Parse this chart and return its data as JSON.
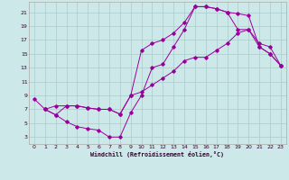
{
  "xlabel": "Windchill (Refroidissement éolien,°C)",
  "bg_color": "#cde8e8",
  "grid_color": "#aacccc",
  "line_color": "#990099",
  "xlim": [
    -0.5,
    23.5
  ],
  "ylim": [
    2,
    22.5
  ],
  "xticks": [
    0,
    1,
    2,
    3,
    4,
    5,
    6,
    7,
    8,
    9,
    10,
    11,
    12,
    13,
    14,
    15,
    16,
    17,
    18,
    19,
    20,
    21,
    22,
    23
  ],
  "yticks": [
    3,
    5,
    7,
    9,
    11,
    13,
    15,
    17,
    19,
    21
  ],
  "line1_x": [
    0,
    1,
    2,
    3,
    4,
    5,
    6,
    7,
    8,
    9,
    10,
    11,
    12,
    13,
    14,
    15,
    16,
    17,
    18,
    19,
    20,
    21,
    22,
    23
  ],
  "line1_y": [
    8.5,
    7.0,
    6.2,
    5.2,
    4.5,
    4.2,
    4.0,
    3.0,
    3.0,
    6.5,
    9.0,
    13.0,
    13.5,
    16.0,
    18.5,
    21.8,
    21.8,
    21.5,
    21.0,
    20.8,
    20.5,
    16.0,
    15.0,
    13.3
  ],
  "line2_x": [
    1,
    2,
    3,
    4,
    5,
    6,
    7,
    8,
    9,
    10,
    11,
    12,
    13,
    14,
    15,
    16,
    17,
    18,
    19,
    20,
    21,
    22,
    23
  ],
  "line2_y": [
    7.0,
    7.5,
    7.5,
    7.5,
    7.2,
    7.0,
    7.0,
    6.3,
    9.0,
    15.5,
    16.5,
    17.0,
    18.0,
    19.5,
    21.8,
    21.8,
    21.5,
    21.0,
    18.5,
    18.5,
    16.0,
    15.0,
    13.3
  ],
  "line3_x": [
    1,
    2,
    3,
    4,
    5,
    6,
    7,
    8,
    9,
    10,
    11,
    12,
    13,
    14,
    15,
    16,
    17,
    18,
    19,
    20,
    21,
    22,
    23
  ],
  "line3_y": [
    7.0,
    6.2,
    7.5,
    7.5,
    7.2,
    7.0,
    7.0,
    6.3,
    9.0,
    9.5,
    10.5,
    11.5,
    12.5,
    14.0,
    14.5,
    14.5,
    15.5,
    16.5,
    18.0,
    18.5,
    16.5,
    16.0,
    13.3
  ]
}
